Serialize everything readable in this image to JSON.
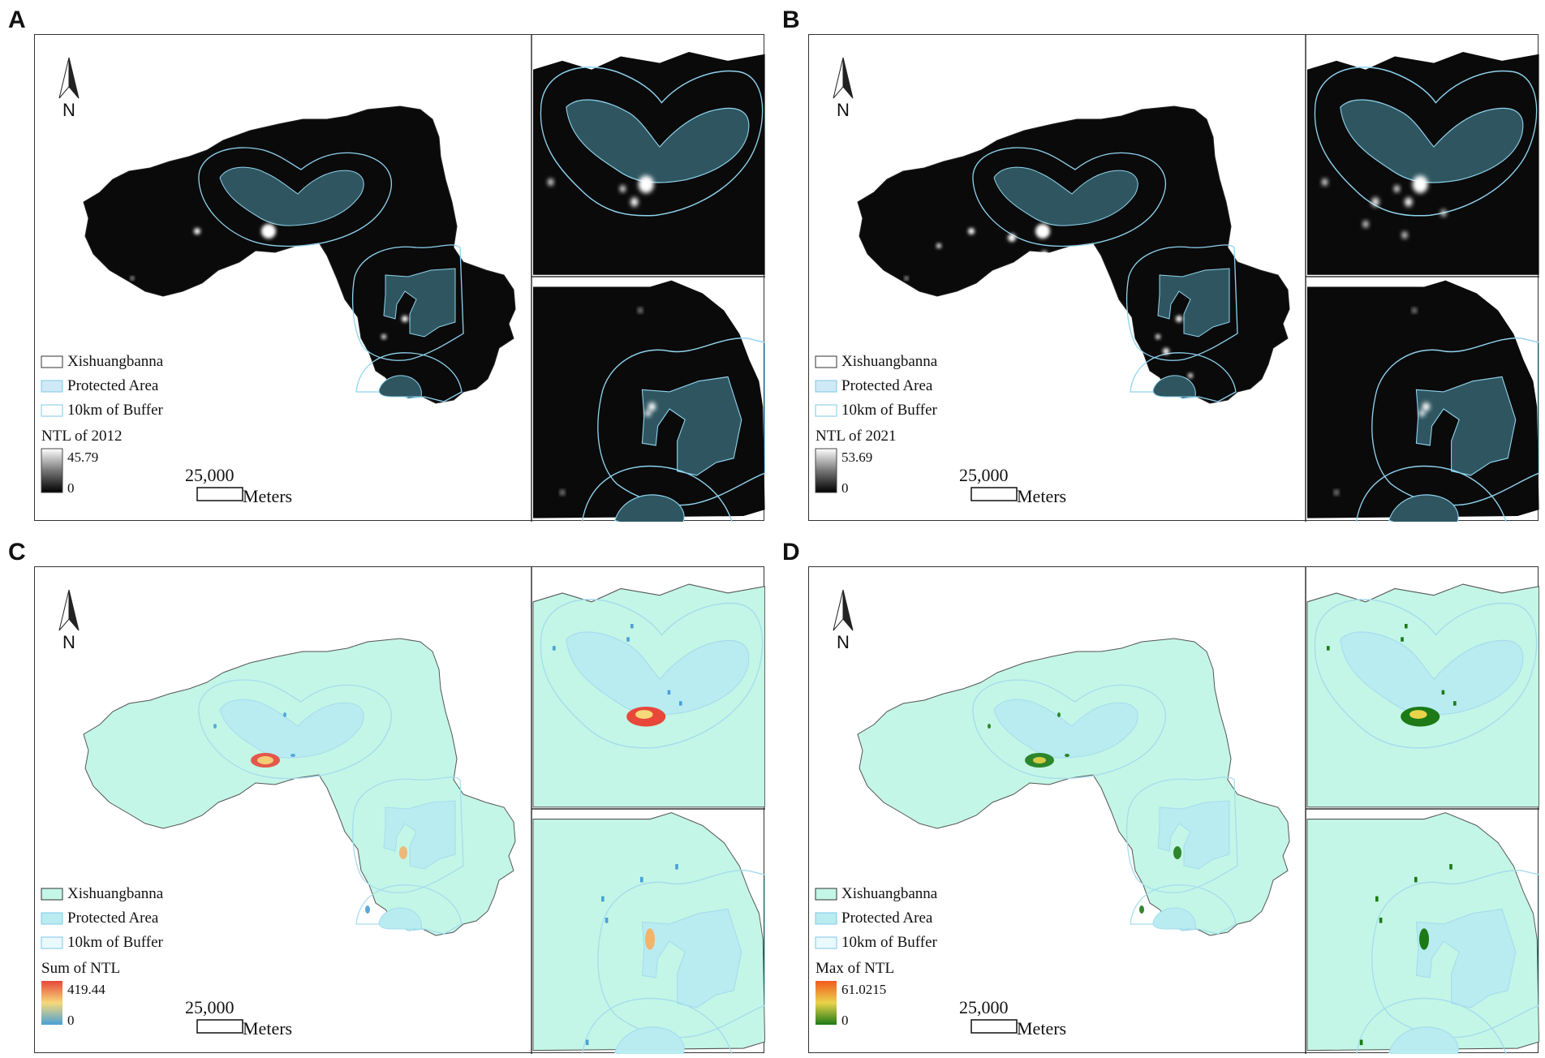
{
  "panels": [
    {
      "letter": "A",
      "theme": "dark",
      "north": "N",
      "legend": {
        "items": [
          "Xishuangbanna",
          "Protected Area",
          "10km of Buffer"
        ],
        "ramp_title": "NTL of 2012",
        "ramp_max": "45.79",
        "ramp_min": "0",
        "scale_value": "25,000",
        "scale_unit": "Meters"
      }
    },
    {
      "letter": "B",
      "theme": "dark",
      "north": "N",
      "legend": {
        "items": [
          "Xishuangbanna",
          "Protected Area",
          "10km of Buffer"
        ],
        "ramp_title": "NTL of 2021",
        "ramp_max": "53.69",
        "ramp_min": "0",
        "scale_value": "25,000",
        "scale_unit": "Meters"
      }
    },
    {
      "letter": "C",
      "theme": "sum",
      "north": "N",
      "legend": {
        "items": [
          "Xishuangbanna",
          "Protected Area",
          "10km of Buffer"
        ],
        "ramp_title": "Sum of NTL",
        "ramp_max": "419.44",
        "ramp_min": "0",
        "scale_value": "25,000",
        "scale_unit": "Meters"
      }
    },
    {
      "letter": "D",
      "theme": "max",
      "north": "N",
      "legend": {
        "items": [
          "Xishuangbanna",
          "Protected Area",
          "10km of Buffer"
        ],
        "ramp_title": "Max of NTL",
        "ramp_max": "61.0215",
        "ramp_min": "0",
        "scale_value": "25,000",
        "scale_unit": "Meters"
      }
    }
  ],
  "colors": {
    "dark_bg": "#060606",
    "dark_fill": "#0a0a0a",
    "protected_dark": "#2f5660",
    "buffer_line": "#8fd3ef",
    "region_light": "#c3f6e6",
    "protected_light": "#b8ecf0",
    "buffer_light": "#a6dcee",
    "outline": "#555555",
    "sum_ramp": [
      "#e8473a",
      "#f6d97a",
      "#4aa0d6"
    ],
    "max_ramp": [
      "#f35a1e",
      "#e9d34a",
      "#1d7a16"
    ]
  }
}
